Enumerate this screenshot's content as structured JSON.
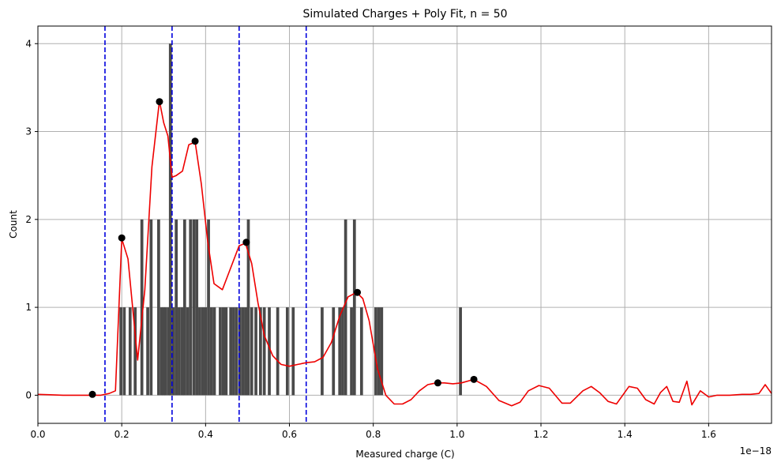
{
  "chart_data": {
    "type": "bar",
    "title": "Simulated Charges + Poly Fit, n = 50",
    "xlabel": "Measured charge (C)",
    "ylabel": "Count",
    "x_offset_label": "1e−18",
    "xlim": [
      0,
      1.75
    ],
    "ylim": [
      -0.32,
      4.2
    ],
    "x_ticks": [
      0,
      0.2,
      0.4,
      0.6,
      0.8,
      1.0,
      1.2,
      1.4,
      1.6
    ],
    "x_tick_labels": [
      "0.0",
      "0.2",
      "0.4",
      "0.6",
      "0.8",
      "1.0",
      "1.2",
      "1.4",
      "1.6"
    ],
    "y_ticks": [
      0,
      1,
      2,
      3,
      4
    ],
    "y_tick_labels": [
      "0",
      "1",
      "2",
      "3",
      "4"
    ],
    "grid": true,
    "colors": {
      "bars": "#4a4a4a",
      "fit": "#ee0000",
      "peaks": "#000000",
      "dividers": "#0000dd",
      "grid": "#b0b0b0"
    },
    "histogram": {
      "bin_width": 0.007,
      "bins": [
        [
          0.198,
          1
        ],
        [
          0.206,
          1
        ],
        [
          0.22,
          1
        ],
        [
          0.232,
          1
        ],
        [
          0.248,
          2
        ],
        [
          0.262,
          1
        ],
        [
          0.27,
          2
        ],
        [
          0.288,
          2
        ],
        [
          0.295,
          1
        ],
        [
          0.3,
          1
        ],
        [
          0.305,
          1
        ],
        [
          0.312,
          1
        ],
        [
          0.316,
          4
        ],
        [
          0.323,
          1
        ],
        [
          0.33,
          2
        ],
        [
          0.337,
          1
        ],
        [
          0.344,
          1
        ],
        [
          0.35,
          2
        ],
        [
          0.357,
          1
        ],
        [
          0.364,
          2
        ],
        [
          0.372,
          2
        ],
        [
          0.379,
          2
        ],
        [
          0.386,
          1
        ],
        [
          0.393,
          1
        ],
        [
          0.4,
          1
        ],
        [
          0.407,
          2
        ],
        [
          0.414,
          1
        ],
        [
          0.421,
          1
        ],
        [
          0.435,
          1
        ],
        [
          0.442,
          1
        ],
        [
          0.449,
          1
        ],
        [
          0.46,
          1
        ],
        [
          0.467,
          1
        ],
        [
          0.474,
          1
        ],
        [
          0.482,
          1
        ],
        [
          0.489,
          1
        ],
        [
          0.496,
          1
        ],
        [
          0.502,
          2
        ],
        [
          0.51,
          1
        ],
        [
          0.52,
          1
        ],
        [
          0.531,
          1
        ],
        [
          0.54,
          1
        ],
        [
          0.552,
          1
        ],
        [
          0.572,
          1
        ],
        [
          0.595,
          1
        ],
        [
          0.609,
          1
        ],
        [
          0.678,
          1
        ],
        [
          0.705,
          1
        ],
        [
          0.72,
          1
        ],
        [
          0.727,
          1
        ],
        [
          0.734,
          2
        ],
        [
          0.748,
          1
        ],
        [
          0.755,
          2
        ],
        [
          0.772,
          1
        ],
        [
          0.806,
          1
        ],
        [
          0.813,
          1
        ],
        [
          0.82,
          1
        ],
        [
          1.008,
          1
        ]
      ]
    },
    "fit_curve": {
      "x": [
        0.0,
        0.03,
        0.06,
        0.09,
        0.12,
        0.15,
        0.17,
        0.185,
        0.2,
        0.215,
        0.238,
        0.255,
        0.272,
        0.29,
        0.3,
        0.31,
        0.32,
        0.33,
        0.345,
        0.36,
        0.375,
        0.39,
        0.405,
        0.42,
        0.44,
        0.46,
        0.48,
        0.495,
        0.51,
        0.525,
        0.54,
        0.56,
        0.58,
        0.6,
        0.62,
        0.64,
        0.66,
        0.68,
        0.7,
        0.72,
        0.74,
        0.76,
        0.775,
        0.79,
        0.81,
        0.83,
        0.85,
        0.87,
        0.89,
        0.91,
        0.93,
        0.95,
        0.97,
        0.99,
        1.01,
        1.04,
        1.07,
        1.1,
        1.13,
        1.15,
        1.17,
        1.195,
        1.22,
        1.25,
        1.27,
        1.3,
        1.32,
        1.34,
        1.36,
        1.38,
        1.41,
        1.43,
        1.45,
        1.47,
        1.485,
        1.5,
        1.515,
        1.53,
        1.548,
        1.56,
        1.58,
        1.6,
        1.62,
        1.65,
        1.68,
        1.7,
        1.72,
        1.735,
        1.75
      ],
      "y": [
        0.01,
        0.005,
        0.0,
        0.0,
        0.0,
        0.0,
        0.02,
        0.05,
        1.78,
        1.55,
        0.4,
        1.2,
        2.6,
        3.35,
        3.1,
        2.95,
        2.48,
        2.5,
        2.55,
        2.85,
        2.88,
        2.4,
        1.75,
        1.27,
        1.2,
        1.45,
        1.7,
        1.73,
        1.5,
        1.05,
        0.68,
        0.45,
        0.35,
        0.33,
        0.35,
        0.37,
        0.38,
        0.43,
        0.6,
        0.9,
        1.12,
        1.17,
        1.1,
        0.85,
        0.3,
        0.0,
        -0.1,
        -0.1,
        -0.05,
        0.05,
        0.12,
        0.14,
        0.14,
        0.13,
        0.14,
        0.18,
        0.1,
        -0.06,
        -0.12,
        -0.08,
        0.05,
        0.11,
        0.08,
        -0.09,
        -0.09,
        0.05,
        0.1,
        0.03,
        -0.07,
        -0.1,
        0.1,
        0.08,
        -0.05,
        -0.1,
        0.03,
        0.1,
        -0.07,
        -0.08,
        0.16,
        -0.11,
        0.05,
        -0.02,
        0.0,
        0.0,
        0.01,
        0.01,
        0.02,
        0.12,
        0.02
      ]
    },
    "peaks": [
      {
        "x": 0.13,
        "y": 0.01
      },
      {
        "x": 0.2,
        "y": 1.79
      },
      {
        "x": 0.29,
        "y": 3.34
      },
      {
        "x": 0.375,
        "y": 2.89
      },
      {
        "x": 0.497,
        "y": 1.74
      },
      {
        "x": 0.762,
        "y": 1.17
      },
      {
        "x": 0.954,
        "y": 0.14
      },
      {
        "x": 1.04,
        "y": 0.18
      }
    ],
    "dividers": [
      0.16,
      0.32,
      0.48,
      0.64
    ]
  }
}
